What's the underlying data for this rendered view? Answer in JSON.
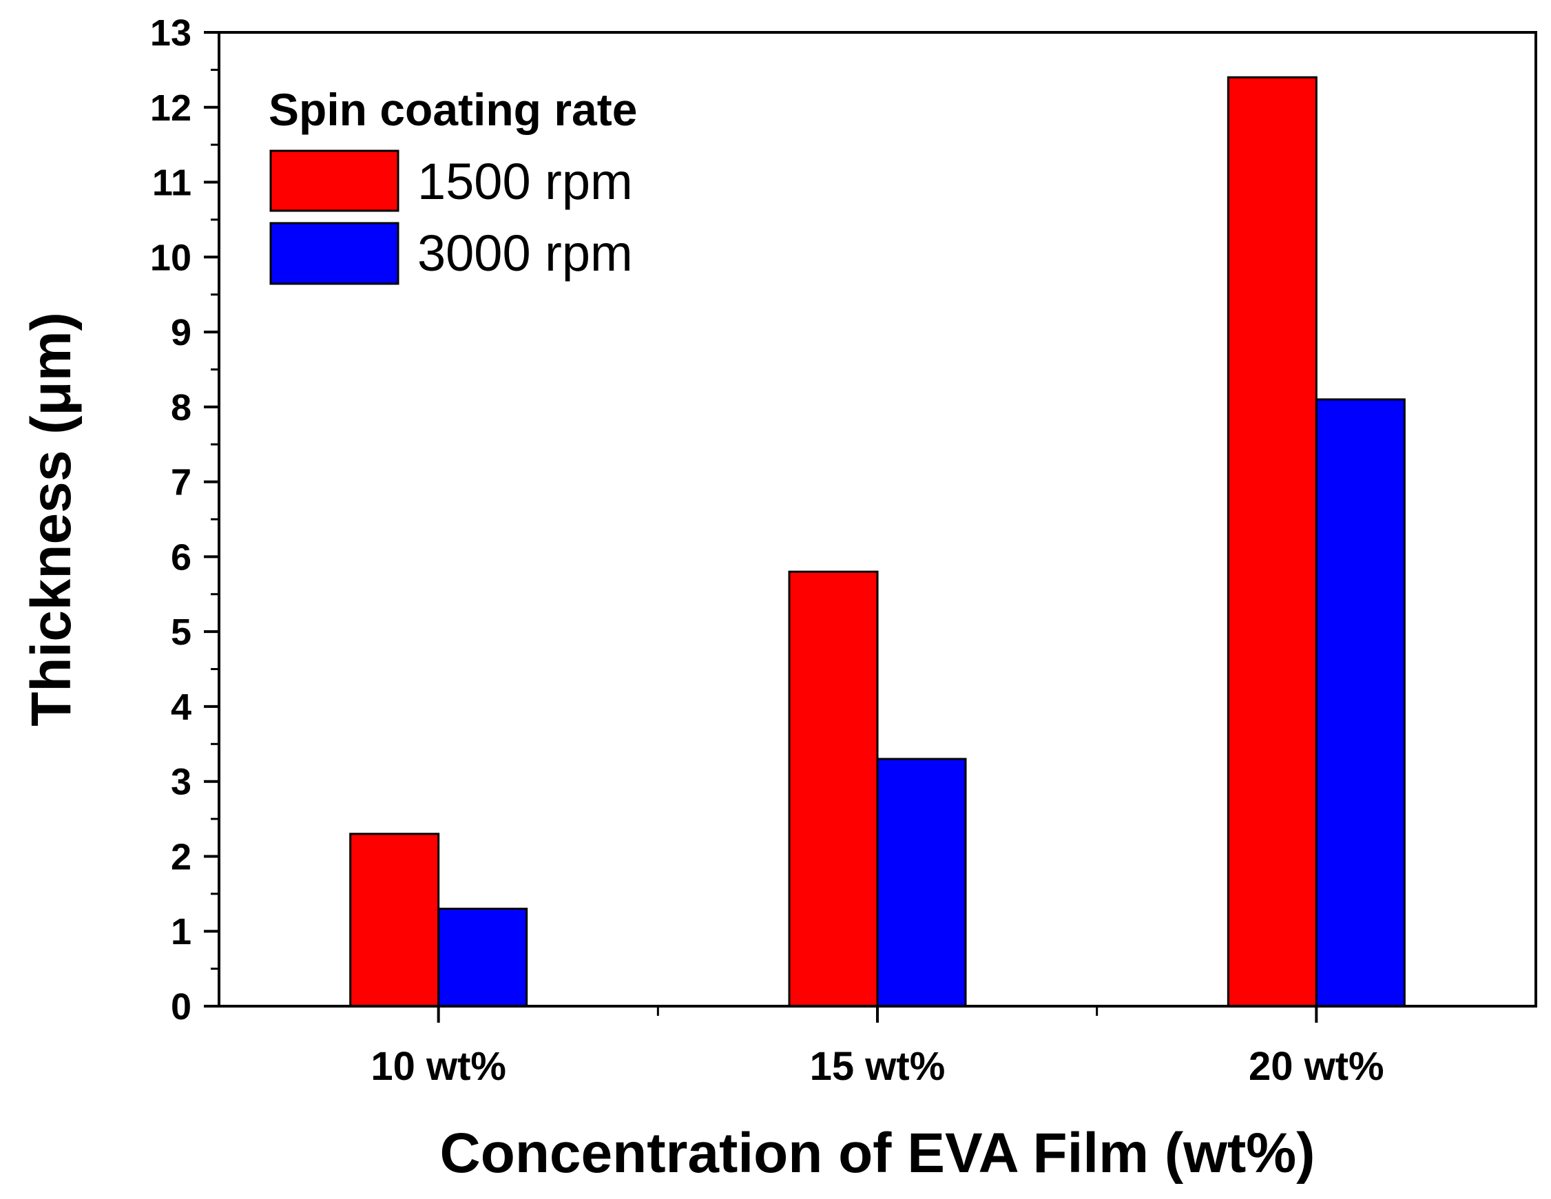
{
  "chart_data": {
    "type": "bar",
    "categories": [
      "10 wt%",
      "15 wt%",
      "20 wt%"
    ],
    "series": [
      {
        "name": "1500 rpm",
        "color": "#ff0000",
        "values": [
          2.3,
          5.8,
          12.4
        ]
      },
      {
        "name": "3000 rpm",
        "color": "#0000ff",
        "values": [
          1.3,
          3.3,
          8.1
        ]
      }
    ],
    "xlabel": "Concentration of EVA Film (wt%)",
    "ylabel": "Thickness (μm)",
    "ylim": [
      0,
      13
    ],
    "yticks": [
      "0",
      "1",
      "2",
      "3",
      "4",
      "5",
      "6",
      "7",
      "8",
      "9",
      "10",
      "11",
      "12",
      "13"
    ],
    "grid": false,
    "legend": {
      "title": "Spin coating rate",
      "placement": "top-left"
    }
  }
}
